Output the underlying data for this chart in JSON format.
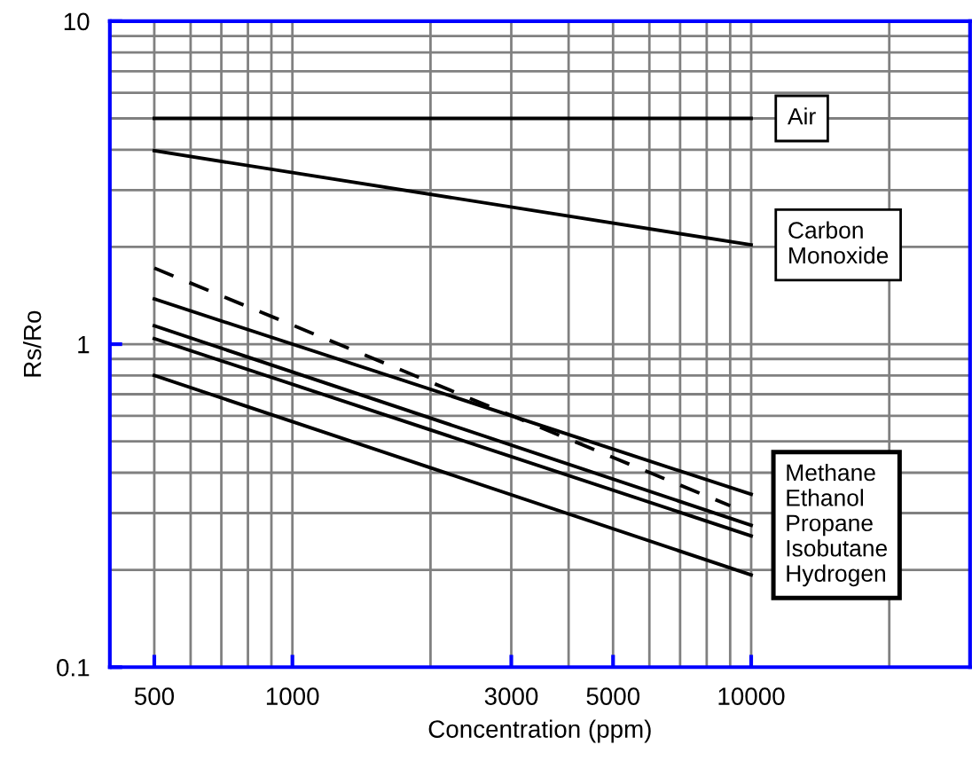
{
  "chart_data": {
    "type": "line",
    "xlabel": "Concentration (ppm)",
    "ylabel": "Rs/Ro",
    "log": "xy",
    "grid": true,
    "marker": "none",
    "x": [
      500,
      10000
    ],
    "xlim": [
      400,
      30000
    ],
    "xticks": [
      500,
      1000,
      3000,
      5000,
      10000
    ],
    "ylim": [
      0.1,
      10
    ],
    "yticks": [
      0.1,
      1,
      10
    ],
    "series": [
      {
        "name": "Air",
        "color": "#000000",
        "values": [
          5,
          5
        ]
      },
      {
        "name": "Carbon\nMonoxide",
        "color": "#000000",
        "values": [
          3.97,
          2.03
        ]
      },
      {
        "color": "#000000",
        "line_style": "dashed",
        "x": [
          500,
          9000
        ],
        "values": [
          1.72,
          0.316
        ]
      },
      {
        "color": "#000000",
        "values": [
          1.38,
          0.343
        ]
      },
      {
        "color": "#000000",
        "values": [
          1.14,
          0.275
        ]
      },
      {
        "color": "#000000",
        "values": [
          1.04,
          0.255
        ]
      },
      {
        "color": "#000000",
        "values": [
          0.8,
          0.193
        ]
      }
    ],
    "annotations": [
      "Methane\nEthanol\nPropane\nIsobutane\nHydrogen"
    ]
  }
}
